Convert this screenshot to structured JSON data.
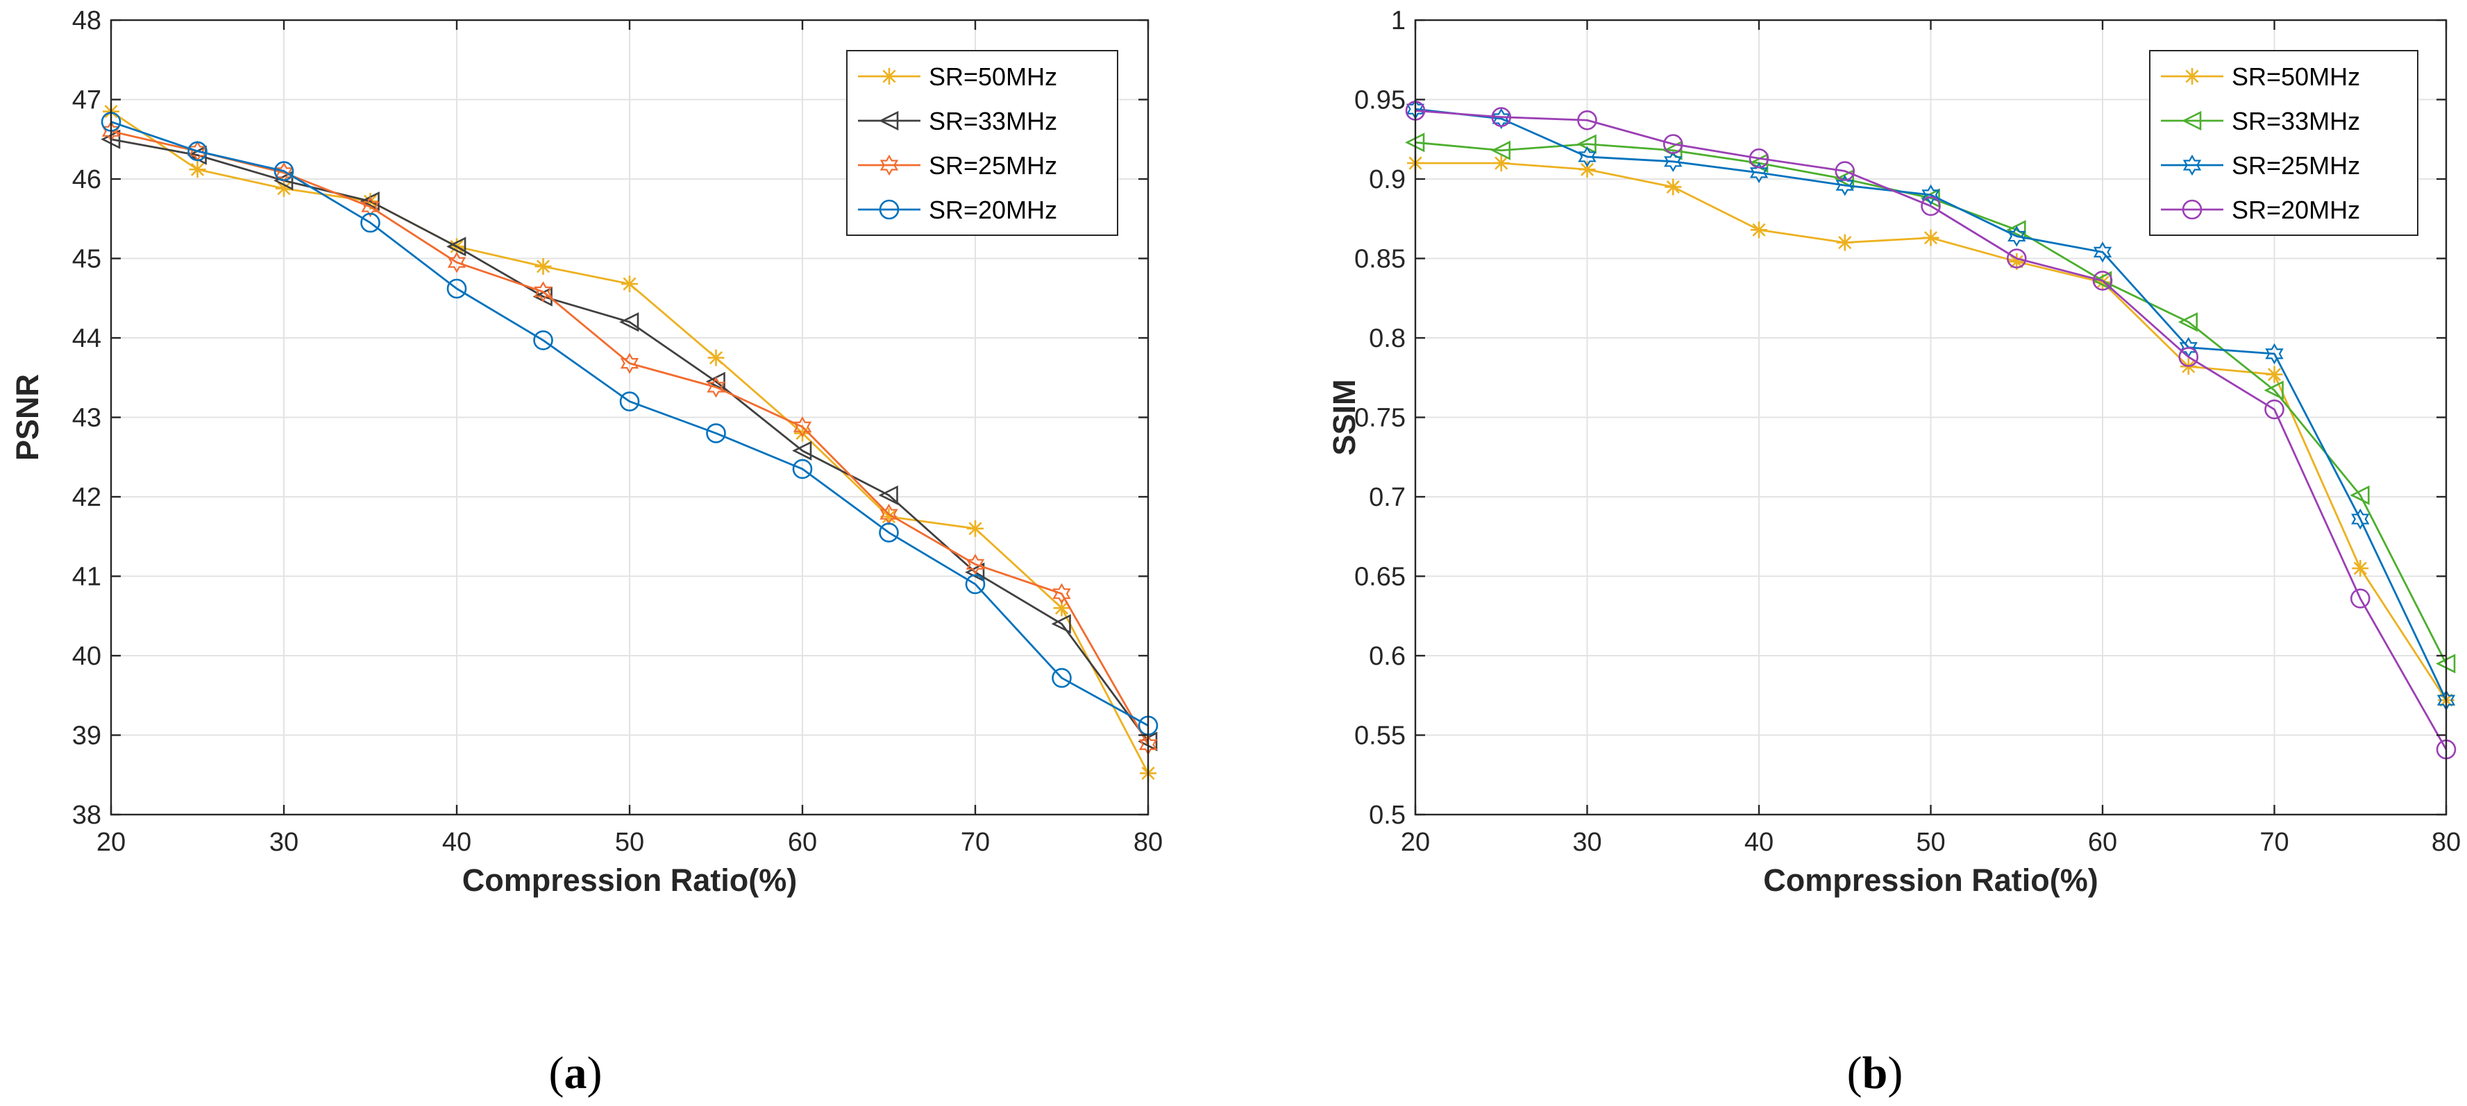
{
  "chart_data": [
    {
      "type": "line",
      "caption_letter": "a",
      "caption_open": "(",
      "caption_close": ")",
      "xlabel": "Compression Ratio(%)",
      "ylabel": "PSNR",
      "xlim": [
        20,
        80
      ],
      "ylim": [
        38,
        48
      ],
      "xticks": [
        20,
        30,
        40,
        50,
        60,
        70,
        80
      ],
      "yticks": [
        38,
        39,
        40,
        41,
        42,
        43,
        44,
        45,
        46,
        47,
        48
      ],
      "grid": true,
      "legend_position": "top-right",
      "x": [
        20,
        25,
        30,
        35,
        40,
        45,
        50,
        55,
        60,
        65,
        70,
        75,
        80
      ],
      "series": [
        {
          "name": "SR=50MHz",
          "color": "#EDB120",
          "marker": "asterisk",
          "values": [
            46.85,
            46.12,
            45.88,
            45.72,
            45.15,
            44.9,
            44.68,
            43.75,
            42.8,
            41.75,
            41.6,
            40.6,
            38.52
          ]
        },
        {
          "name": "SR=33MHz",
          "color": "#404040",
          "marker": "triangle-left",
          "values": [
            46.5,
            46.3,
            45.98,
            45.72,
            45.15,
            44.52,
            44.2,
            43.45,
            42.58,
            42.02,
            41.05,
            40.4,
            38.92
          ]
        },
        {
          "name": "SR=25MHz",
          "color": "#F26B2E",
          "marker": "hexagram",
          "values": [
            46.6,
            46.35,
            46.08,
            45.65,
            44.95,
            44.58,
            43.68,
            43.38,
            42.88,
            41.78,
            41.15,
            40.78,
            38.88
          ]
        },
        {
          "name": "SR=20MHz",
          "color": "#0072BD",
          "marker": "circle",
          "values": [
            46.72,
            46.35,
            46.1,
            45.45,
            44.62,
            43.97,
            43.2,
            42.8,
            42.35,
            41.55,
            40.9,
            39.72,
            39.12
          ]
        }
      ]
    },
    {
      "type": "line",
      "caption_letter": "b",
      "caption_open": "(",
      "caption_close": ")",
      "xlabel": "Compression Ratio(%)",
      "ylabel": "SSIM",
      "xlim": [
        20,
        80
      ],
      "ylim": [
        0.5,
        1
      ],
      "xticks": [
        20,
        30,
        40,
        50,
        60,
        70,
        80
      ],
      "yticks": [
        0.5,
        0.55,
        0.6,
        0.65,
        0.7,
        0.75,
        0.8,
        0.85,
        0.9,
        0.95,
        1
      ],
      "grid": true,
      "legend_position": "top-right",
      "x": [
        20,
        25,
        30,
        35,
        40,
        45,
        50,
        55,
        60,
        65,
        70,
        75,
        80
      ],
      "series": [
        {
          "name": "SR=50MHz",
          "color": "#EDB120",
          "marker": "asterisk",
          "values": [
            0.91,
            0.91,
            0.906,
            0.895,
            0.868,
            0.86,
            0.863,
            0.848,
            0.835,
            0.782,
            0.777,
            0.655,
            0.572
          ]
        },
        {
          "name": "SR=33MHz",
          "color": "#4CAF2E",
          "marker": "triangle-left",
          "values": [
            0.923,
            0.918,
            0.922,
            0.918,
            0.91,
            0.9,
            0.888,
            0.868,
            0.836,
            0.81,
            0.767,
            0.701,
            0.595
          ]
        },
        {
          "name": "SR=25MHz",
          "color": "#0072BD",
          "marker": "hexagram",
          "values": [
            0.944,
            0.938,
            0.914,
            0.911,
            0.904,
            0.896,
            0.89,
            0.864,
            0.854,
            0.794,
            0.79,
            0.686,
            0.572
          ]
        },
        {
          "name": "SR=20MHz",
          "color": "#9B3FB5",
          "marker": "circle",
          "values": [
            0.943,
            0.939,
            0.937,
            0.922,
            0.913,
            0.905,
            0.883,
            0.85,
            0.836,
            0.788,
            0.755,
            0.636,
            0.541
          ]
        }
      ]
    }
  ]
}
